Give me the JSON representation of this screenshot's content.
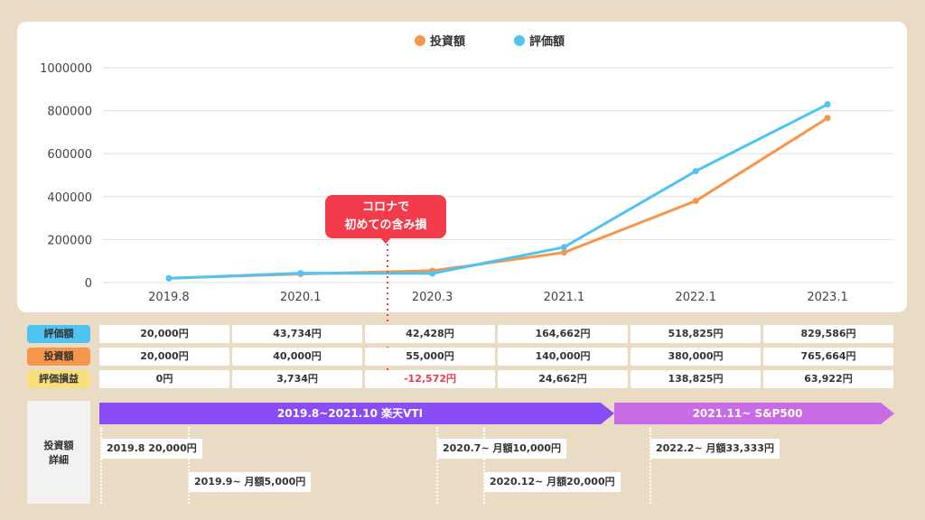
{
  "chart_data": {
    "type": "line",
    "categories": [
      "2019.8",
      "2020.1",
      "2020.3",
      "2021.1",
      "2022.1",
      "2023.1"
    ],
    "series": [
      {
        "name": "投資額",
        "values": [
          20000,
          40000,
          55000,
          140000,
          380000,
          765664
        ],
        "color": "#f7964a"
      },
      {
        "name": "評価額",
        "values": [
          20000,
          43734,
          42428,
          164662,
          518825,
          829586
        ],
        "color": "#4fc3f2"
      }
    ],
    "ylim": [
      0,
      1000000
    ],
    "yticks": [
      "0",
      "200000",
      "400000",
      "600000",
      "800000",
      "1000000"
    ],
    "legend_position": "top-center",
    "grid": true
  },
  "callout": {
    "line1": "コロナで",
    "line2": "初めての含み損"
  },
  "table": {
    "rows": [
      {
        "label": "評価額",
        "color": "#4fc3f2",
        "cells": [
          "20,000円",
          "43,734円",
          "42,428円",
          "164,662円",
          "518,825円",
          "829,586円"
        ]
      },
      {
        "label": "投資額",
        "color": "#f7964a",
        "cells": [
          "20,000円",
          "40,000円",
          "55,000円",
          "140,000円",
          "380,000円",
          "765,664円"
        ]
      },
      {
        "label": "評価損益",
        "color": "#f9e07a",
        "cells": [
          "0円",
          "3,734円",
          "-12,572円",
          "24,662円",
          "138,825円",
          "63,922円"
        ]
      }
    ]
  },
  "detail": {
    "label_line1": "投資額",
    "label_line2": "詳細",
    "band1": {
      "text": "2019.8~2021.10  楽天VTI",
      "color": "#8a4df5"
    },
    "band2": {
      "text": "2021.11~  S&P500",
      "color": "#c86be6"
    },
    "notes": [
      "2019.8  20,000円",
      "2019.9~ 月額5,000円",
      "2020.7~ 月額10,000円",
      "2020.12~ 月額20,000円",
      "2022.2~ 月額33,333円"
    ]
  }
}
